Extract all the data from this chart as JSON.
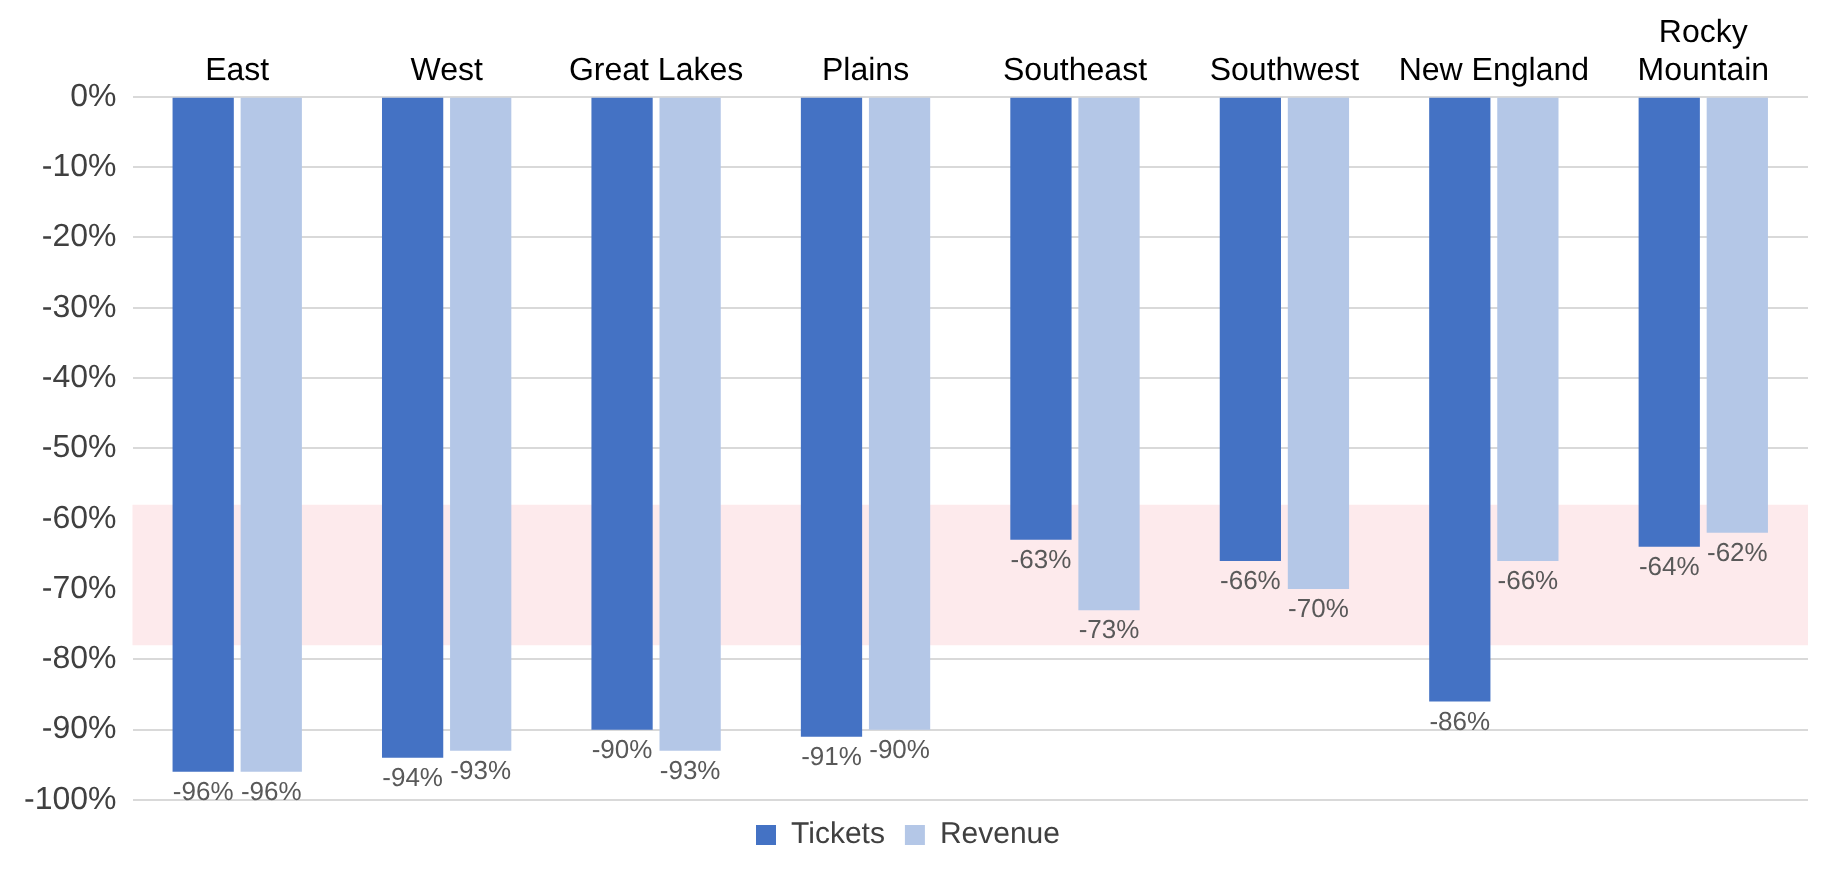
{
  "chart_data": {
    "type": "bar",
    "categories": [
      "East",
      "West",
      "Great Lakes",
      "Plains",
      "Southeast",
      "Southwest",
      "New England",
      "Rocky Mountain"
    ],
    "series": [
      {
        "name": "Tickets",
        "color": "#4472c4",
        "values": [
          -96,
          -94,
          -90,
          -91,
          -63,
          -66,
          -86,
          -64
        ],
        "value_labels": [
          "-96%",
          "-94%",
          "-90%",
          "-91%",
          "-63%",
          "-66%",
          "-86%",
          "-64%"
        ]
      },
      {
        "name": "Revenue",
        "color": "#b4c7e7",
        "values": [
          -96,
          -93,
          -93,
          -90,
          -73,
          -70,
          -66,
          -62
        ],
        "value_labels": [
          "-96%",
          "-93%",
          "-93%",
          "-90%",
          "-73%",
          "-70%",
          "-66%",
          "-62%"
        ]
      }
    ],
    "ylim": [
      -100,
      0
    ],
    "yticks": [
      {
        "value": 0,
        "label": "0%"
      },
      {
        "value": -10,
        "label": "-10%"
      },
      {
        "value": -20,
        "label": "-20%"
      },
      {
        "value": -30,
        "label": "-30%"
      },
      {
        "value": -40,
        "label": "-40%"
      },
      {
        "value": -50,
        "label": "-50%"
      },
      {
        "value": -60,
        "label": "-60%"
      },
      {
        "value": -70,
        "label": "-70%"
      },
      {
        "value": -80,
        "label": "-80%"
      },
      {
        "value": -90,
        "label": "-90%"
      },
      {
        "value": -100,
        "label": "-100%"
      }
    ],
    "bands": [
      {
        "axis": "y",
        "from": -58,
        "to": -78,
        "color": "#fdeaec"
      }
    ],
    "grid": "y",
    "legend": "bottom"
  }
}
